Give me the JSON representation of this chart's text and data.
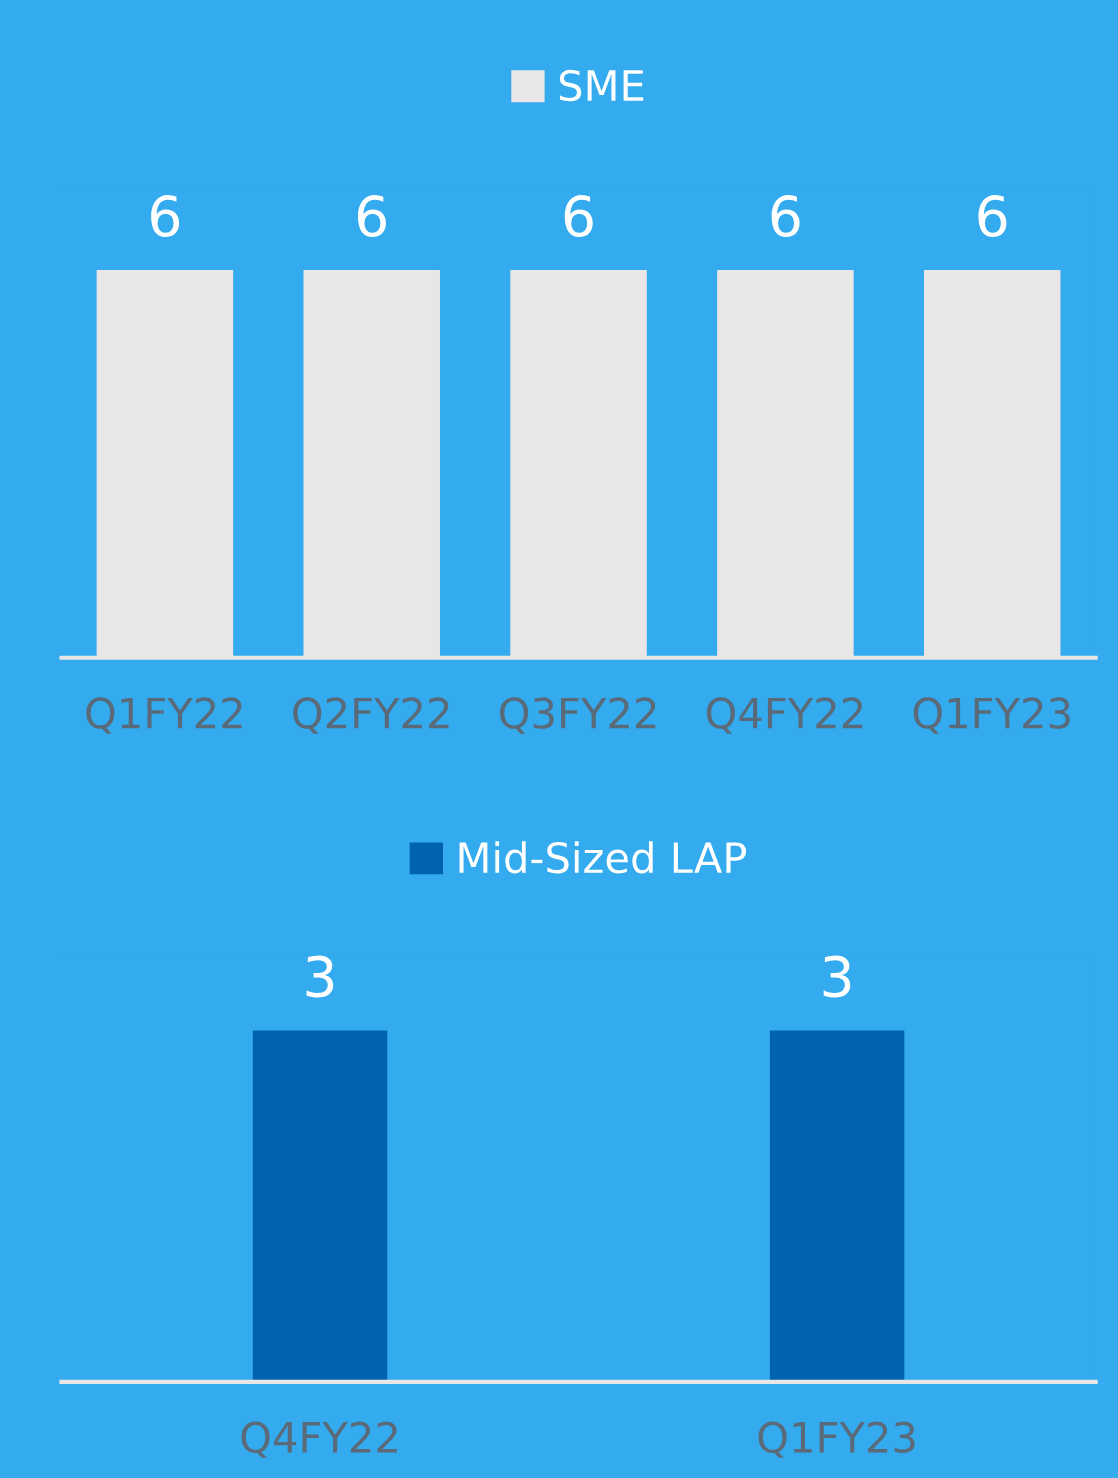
{
  "chart_data": [
    {
      "type": "bar",
      "categories": [
        "Q1FY22",
        "Q2FY22",
        "Q3FY22",
        "Q4FY22",
        "Q1FY23"
      ],
      "series": [
        {
          "name": "SME",
          "color": "#e8e6e6",
          "values": [
            6,
            6,
            6,
            6,
            6
          ]
        }
      ],
      "data_labels": true,
      "legend": "top",
      "grid": false,
      "tick_labels": "x"
    },
    {
      "type": "bar",
      "categories": [
        "Q4FY22",
        "Q1FY23"
      ],
      "series": [
        {
          "name": "Mid-Sized LAP",
          "color": "#0063b0",
          "values": [
            3,
            3
          ]
        }
      ],
      "data_labels": true,
      "legend": "top",
      "grid": false,
      "tick_labels": "x"
    }
  ]
}
